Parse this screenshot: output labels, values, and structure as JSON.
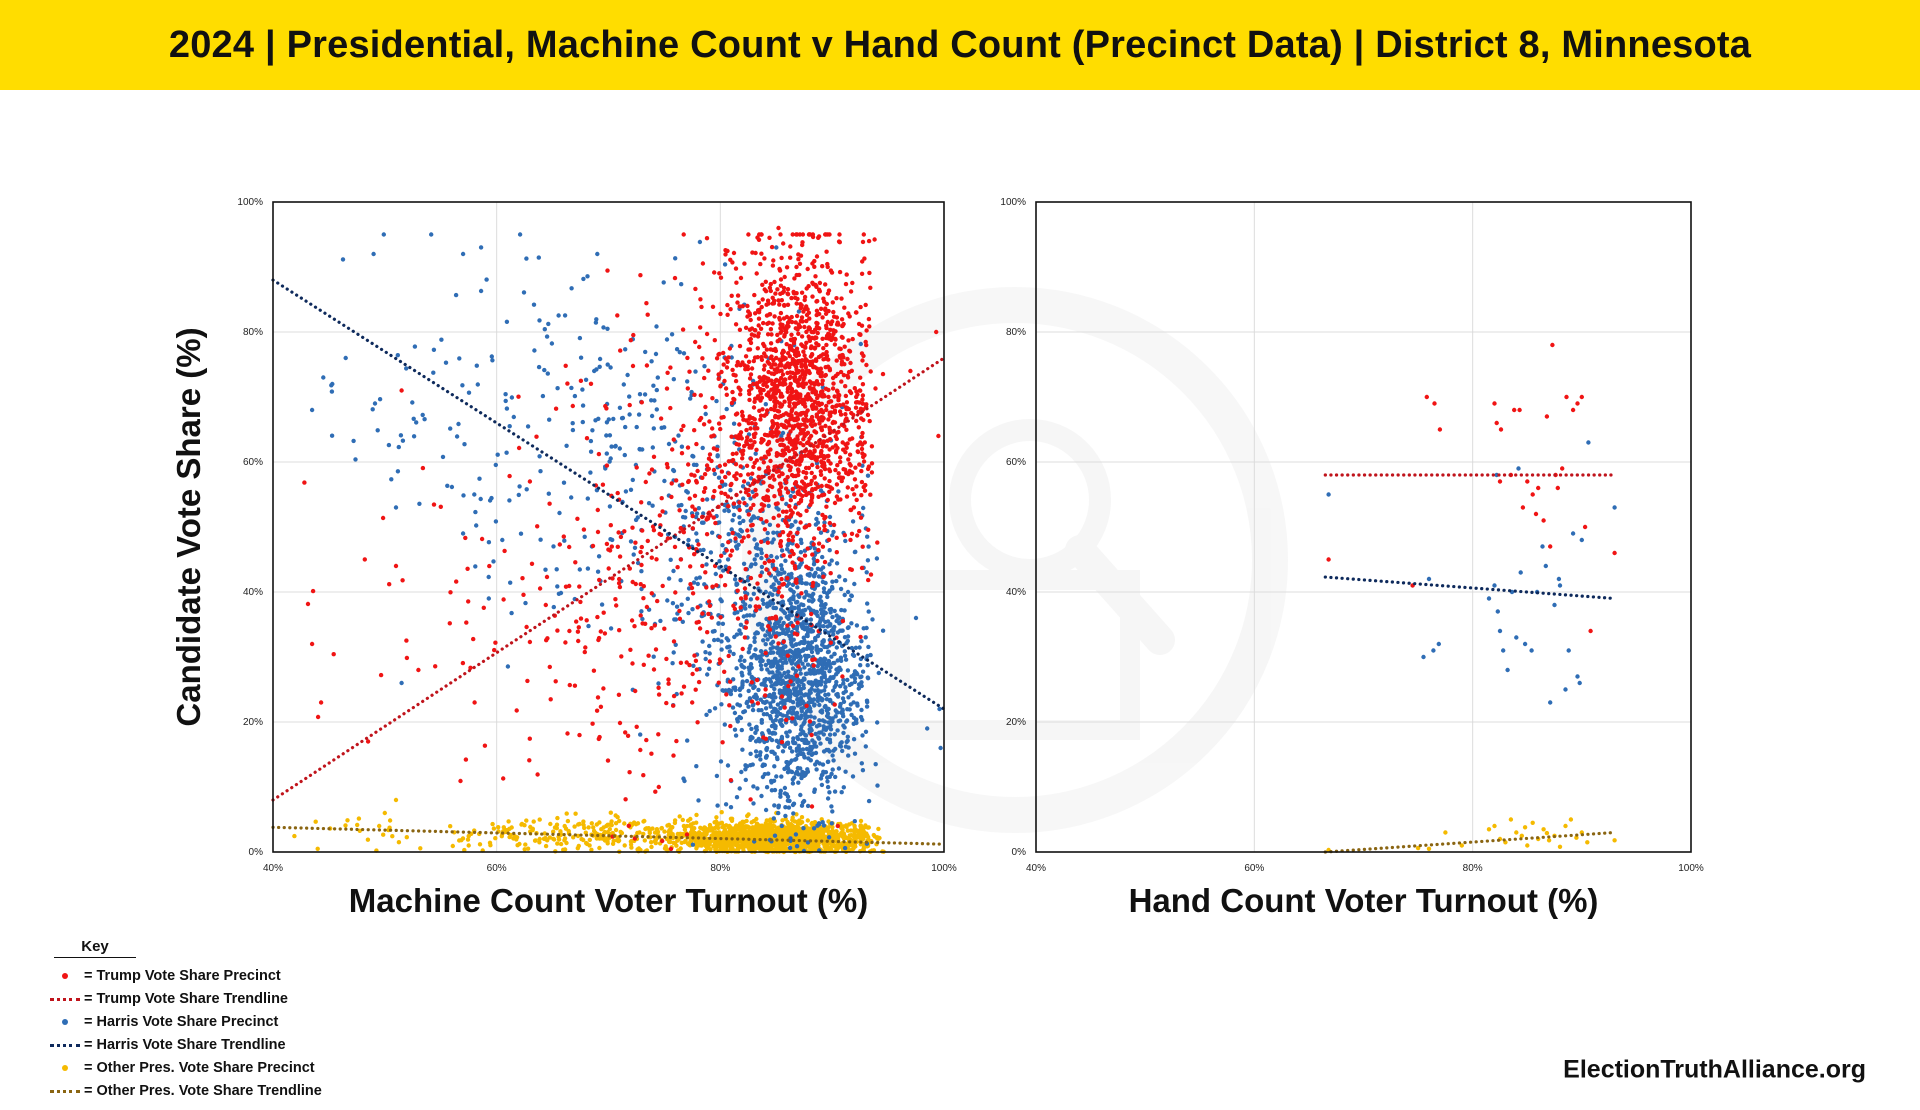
{
  "header": {
    "title": "2024 | Presidential, Machine Count v Hand Count (Precinct Data) | District 8, Minnesota",
    "background": "#FFDD00"
  },
  "footer": {
    "site": "ElectionTruthAlliance.org"
  },
  "colors": {
    "trump": "#F01414",
    "trump_trend": "#C0141C",
    "harris": "#2F6DB5",
    "harris_trend": "#0E2A5C",
    "other": "#F5BA00",
    "other_trend": "#8A6512",
    "grid": "#DCDCDC"
  },
  "watermark": {
    "icon": "election-truth-alliance-seal-icon"
  },
  "key": {
    "title": "Key",
    "items": [
      {
        "symbol": "dot",
        "color": "#F01414",
        "label": "= Trump Vote Share Precinct"
      },
      {
        "symbol": "line",
        "color": "#C0141C",
        "label": "= Trump Vote Share Trendline"
      },
      {
        "symbol": "dot",
        "color": "#2F6DB5",
        "label": "= Harris Vote Share Precinct"
      },
      {
        "symbol": "line",
        "color": "#0E2A5C",
        "label": "= Harris Vote Share Trendline"
      },
      {
        "symbol": "dot",
        "color": "#F5BA00",
        "label": "= Other Pres. Vote Share Precinct"
      },
      {
        "symbol": "line",
        "color": "#8A6512",
        "label": "= Other Pres. Vote Share Trendline"
      }
    ]
  },
  "y_axis_label": "Candidate Vote Share (%)",
  "chart_data": [
    {
      "type": "scatter",
      "xlabel": "Machine Count Voter Turnout (%)",
      "ylabel": "Candidate Vote Share (%)",
      "xlim": [
        40,
        100
      ],
      "ylim": [
        0,
        100
      ],
      "xticks": [
        "40%",
        "60%",
        "80%",
        "100%"
      ],
      "yticks": [
        "0%",
        "20%",
        "40%",
        "60%",
        "80%",
        "100%"
      ],
      "grid": true,
      "series": [
        {
          "name": "Trump Vote Share Precinct",
          "kind": "points",
          "clusters": [
            {
              "n": 1300,
              "cx": 87,
              "sx": 3.2,
              "cy": 71,
              "sy": 11
            },
            {
              "n": 450,
              "cx": 82,
              "sx": 5,
              "cy": 55,
              "sy": 16
            },
            {
              "n": 200,
              "cx": 72,
              "sx": 6,
              "cy": 38,
              "sy": 16
            },
            {
              "n": 40,
              "cx": 57,
              "sx": 8,
              "cy": 30,
              "sy": 15
            }
          ],
          "points": [
            [
              85.2,
              96
            ],
            [
              43.5,
              32
            ],
            [
              44.3,
              23
            ],
            [
              51,
              44
            ],
            [
              51.5,
              71
            ],
            [
              99.3,
              80
            ],
            [
              99.5,
              64
            ],
            [
              97,
              74
            ],
            [
              48.5,
              17
            ],
            [
              53,
              28
            ],
            [
              66.5,
              34
            ],
            [
              74.5,
              10
            ],
            [
              88.2,
              7
            ],
            [
              90.5,
              4
            ]
          ]
        },
        {
          "name": "Harris Vote Share Precinct",
          "kind": "points",
          "clusters": [
            {
              "n": 1300,
              "cx": 87,
              "sx": 3,
              "cy": 27,
              "sy": 10
            },
            {
              "n": 450,
              "cx": 83,
              "sx": 5,
              "cy": 42,
              "sy": 14
            },
            {
              "n": 220,
              "cx": 70,
              "sx": 7,
              "cy": 62,
              "sy": 14
            },
            {
              "n": 60,
              "cx": 56,
              "sx": 8,
              "cy": 72,
              "sy": 12
            }
          ],
          "points": [
            [
              49,
              92
            ],
            [
              57,
              92
            ],
            [
              43.5,
              68
            ],
            [
              44.5,
              73
            ],
            [
              46.5,
              76
            ],
            [
              51,
              53
            ],
            [
              51.5,
              26
            ],
            [
              57,
              49
            ],
            [
              58,
              55
            ],
            [
              59.3,
              39
            ],
            [
              60.5,
              48
            ],
            [
              97.5,
              36
            ],
            [
              99.6,
              22
            ],
            [
              99.7,
              16
            ],
            [
              98.5,
              19
            ],
            [
              69,
              92
            ],
            [
              85,
              93
            ]
          ]
        },
        {
          "name": "Other Pres. Vote Share Precinct",
          "kind": "points",
          "clusters": [
            {
              "n": 1400,
              "cx": 85,
              "sx": 4.5,
              "cy": 2.2,
              "sy": 1.2
            },
            {
              "n": 250,
              "cx": 70,
              "sx": 7,
              "cy": 2.6,
              "sy": 1.4
            },
            {
              "n": 30,
              "cx": 52,
              "sx": 7,
              "cy": 3,
              "sy": 2
            }
          ],
          "points": [
            [
              51,
              8
            ],
            [
              50,
              6
            ],
            [
              49.5,
              4
            ],
            [
              57.5,
              1
            ],
            [
              44,
              0.5
            ]
          ]
        },
        {
          "name": "Trump Vote Share Trendline",
          "kind": "trend",
          "x": [
            40,
            100
          ],
          "y": [
            8,
            76
          ]
        },
        {
          "name": "Harris Vote Share Trendline",
          "kind": "trend",
          "x": [
            40,
            100
          ],
          "y": [
            88,
            22
          ]
        },
        {
          "name": "Other Pres. Vote Share Trendline",
          "kind": "trend",
          "x": [
            40,
            100
          ],
          "y": [
            3.8,
            1.2
          ]
        }
      ]
    },
    {
      "type": "scatter",
      "xlabel": "Hand Count Voter Turnout (%)",
      "ylabel": "",
      "xlim": [
        40,
        100
      ],
      "ylim": [
        0,
        100
      ],
      "xticks": [
        "40%",
        "60%",
        "80%",
        "100%"
      ],
      "yticks": [
        "0%",
        "20%",
        "40%",
        "60%",
        "80%",
        "100%"
      ],
      "grid": true,
      "series": [
        {
          "name": "Trump Vote Share Precinct",
          "kind": "points",
          "clusters": [],
          "points": [
            [
              66.8,
              45
            ],
            [
              74.5,
              41
            ],
            [
              75.8,
              70
            ],
            [
              76.5,
              69
            ],
            [
              77,
              65
            ],
            [
              82,
              69
            ],
            [
              82.2,
              66
            ],
            [
              82.6,
              65
            ],
            [
              83.5,
              58
            ],
            [
              83.8,
              68
            ],
            [
              84.3,
              68
            ],
            [
              84.6,
              53
            ],
            [
              85,
              57
            ],
            [
              85.5,
              55
            ],
            [
              86,
              56
            ],
            [
              86.5,
              51
            ],
            [
              86.8,
              67
            ],
            [
              87.1,
              47
            ],
            [
              87.3,
              78
            ],
            [
              87.6,
              58
            ],
            [
              88.2,
              59
            ],
            [
              88.6,
              70
            ],
            [
              89.2,
              68
            ],
            [
              89.6,
              69
            ],
            [
              90,
              70
            ],
            [
              90.3,
              50
            ],
            [
              90.8,
              34
            ],
            [
              93,
              46
            ],
            [
              82.5,
              57
            ],
            [
              85.8,
              52
            ],
            [
              87.8,
              56
            ]
          ]
        },
        {
          "name": "Harris Vote Share Precinct",
          "kind": "points",
          "clusters": [],
          "points": [
            [
              66.8,
              55
            ],
            [
              75.5,
              30
            ],
            [
              76,
              42
            ],
            [
              76.4,
              31
            ],
            [
              76.9,
              32
            ],
            [
              81.5,
              39
            ],
            [
              82,
              41
            ],
            [
              82.3,
              37
            ],
            [
              82.5,
              34
            ],
            [
              82.8,
              31
            ],
            [
              83.2,
              28
            ],
            [
              83.6,
              40
            ],
            [
              84,
              33
            ],
            [
              84.4,
              43
            ],
            [
              84.8,
              32
            ],
            [
              85.4,
              31
            ],
            [
              85.9,
              40
            ],
            [
              86.4,
              47
            ],
            [
              86.7,
              44
            ],
            [
              87.1,
              23
            ],
            [
              87.5,
              38
            ],
            [
              87.9,
              42
            ],
            [
              88.5,
              25
            ],
            [
              88.8,
              31
            ],
            [
              89.2,
              49
            ],
            [
              89.6,
              27
            ],
            [
              90,
              48
            ],
            [
              90.6,
              63
            ],
            [
              93,
              53
            ],
            [
              82.2,
              58
            ],
            [
              84.2,
              59
            ],
            [
              88,
              41
            ],
            [
              89.8,
              26
            ]
          ]
        },
        {
          "name": "Other Pres. Vote Share Precinct",
          "kind": "points",
          "clusters": [],
          "points": [
            [
              66.8,
              0.3
            ],
            [
              75,
              0.6
            ],
            [
              76,
              0.5
            ],
            [
              77.5,
              3
            ],
            [
              79,
              1
            ],
            [
              81.5,
              3.5
            ],
            [
              82,
              4
            ],
            [
              82.5,
              2
            ],
            [
              83,
              1.5
            ],
            [
              83.5,
              5
            ],
            [
              84,
              3
            ],
            [
              84.5,
              2.5
            ],
            [
              85,
              1
            ],
            [
              85.5,
              4.5
            ],
            [
              86,
              2
            ],
            [
              86.5,
              3.5
            ],
            [
              87,
              1.8
            ],
            [
              87.5,
              2.5
            ],
            [
              88,
              0.8
            ],
            [
              88.5,
              4
            ],
            [
              89,
              5
            ],
            [
              89.5,
              2.2
            ],
            [
              90,
              3
            ],
            [
              90.5,
              1.5
            ],
            [
              93,
              1.8
            ],
            [
              84.8,
              3.8
            ],
            [
              86.8,
              2.9
            ]
          ]
        },
        {
          "name": "Trump Vote Share Trendline",
          "kind": "trend",
          "x": [
            66.5,
            93
          ],
          "y": [
            58,
            58
          ]
        },
        {
          "name": "Harris Vote Share Trendline",
          "kind": "trend",
          "x": [
            66.5,
            93
          ],
          "y": [
            42.3,
            39
          ]
        },
        {
          "name": "Other Pres. Vote Share Trendline",
          "kind": "trend",
          "x": [
            66.5,
            93
          ],
          "y": [
            0,
            3
          ]
        }
      ]
    }
  ]
}
